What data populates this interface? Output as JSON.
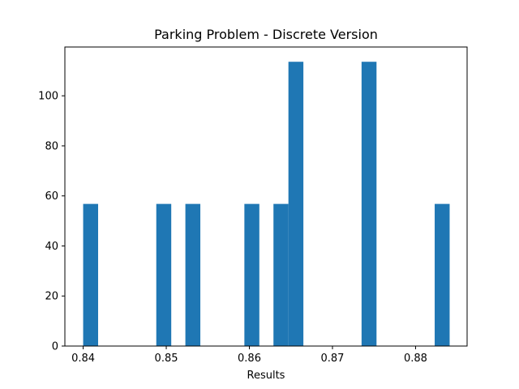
{
  "chart_data": {
    "type": "bar",
    "title": "Parking Problem - Discrete Version",
    "xlabel": "Results",
    "ylabel": "",
    "bar_color": "#1f77b4",
    "xlim": [
      0.8378,
      0.8862
    ],
    "ylim": [
      0,
      119.5
    ],
    "xticks": [
      0.84,
      0.85,
      0.86,
      0.87,
      0.88
    ],
    "xtick_labels": [
      "0.84",
      "0.85",
      "0.86",
      "0.87",
      "0.88"
    ],
    "yticks": [
      0,
      20,
      40,
      60,
      80,
      100
    ],
    "ytick_labels": [
      "0",
      "20",
      "40",
      "60",
      "80",
      "100"
    ],
    "bins": [
      {
        "x0": 0.84,
        "x1": 0.8418,
        "value": 56.8
      },
      {
        "x0": 0.8488,
        "x1": 0.8506,
        "value": 56.8
      },
      {
        "x0": 0.8523,
        "x1": 0.8541,
        "value": 56.8
      },
      {
        "x0": 0.8594,
        "x1": 0.8612,
        "value": 56.8
      },
      {
        "x0": 0.8629,
        "x1": 0.8647,
        "value": 56.8
      },
      {
        "x0": 0.8647,
        "x1": 0.8665,
        "value": 113.6
      },
      {
        "x0": 0.8735,
        "x1": 0.8753,
        "value": 113.6
      },
      {
        "x0": 0.8823,
        "x1": 0.8841,
        "value": 56.8
      }
    ],
    "grid": false,
    "legend": "none"
  }
}
